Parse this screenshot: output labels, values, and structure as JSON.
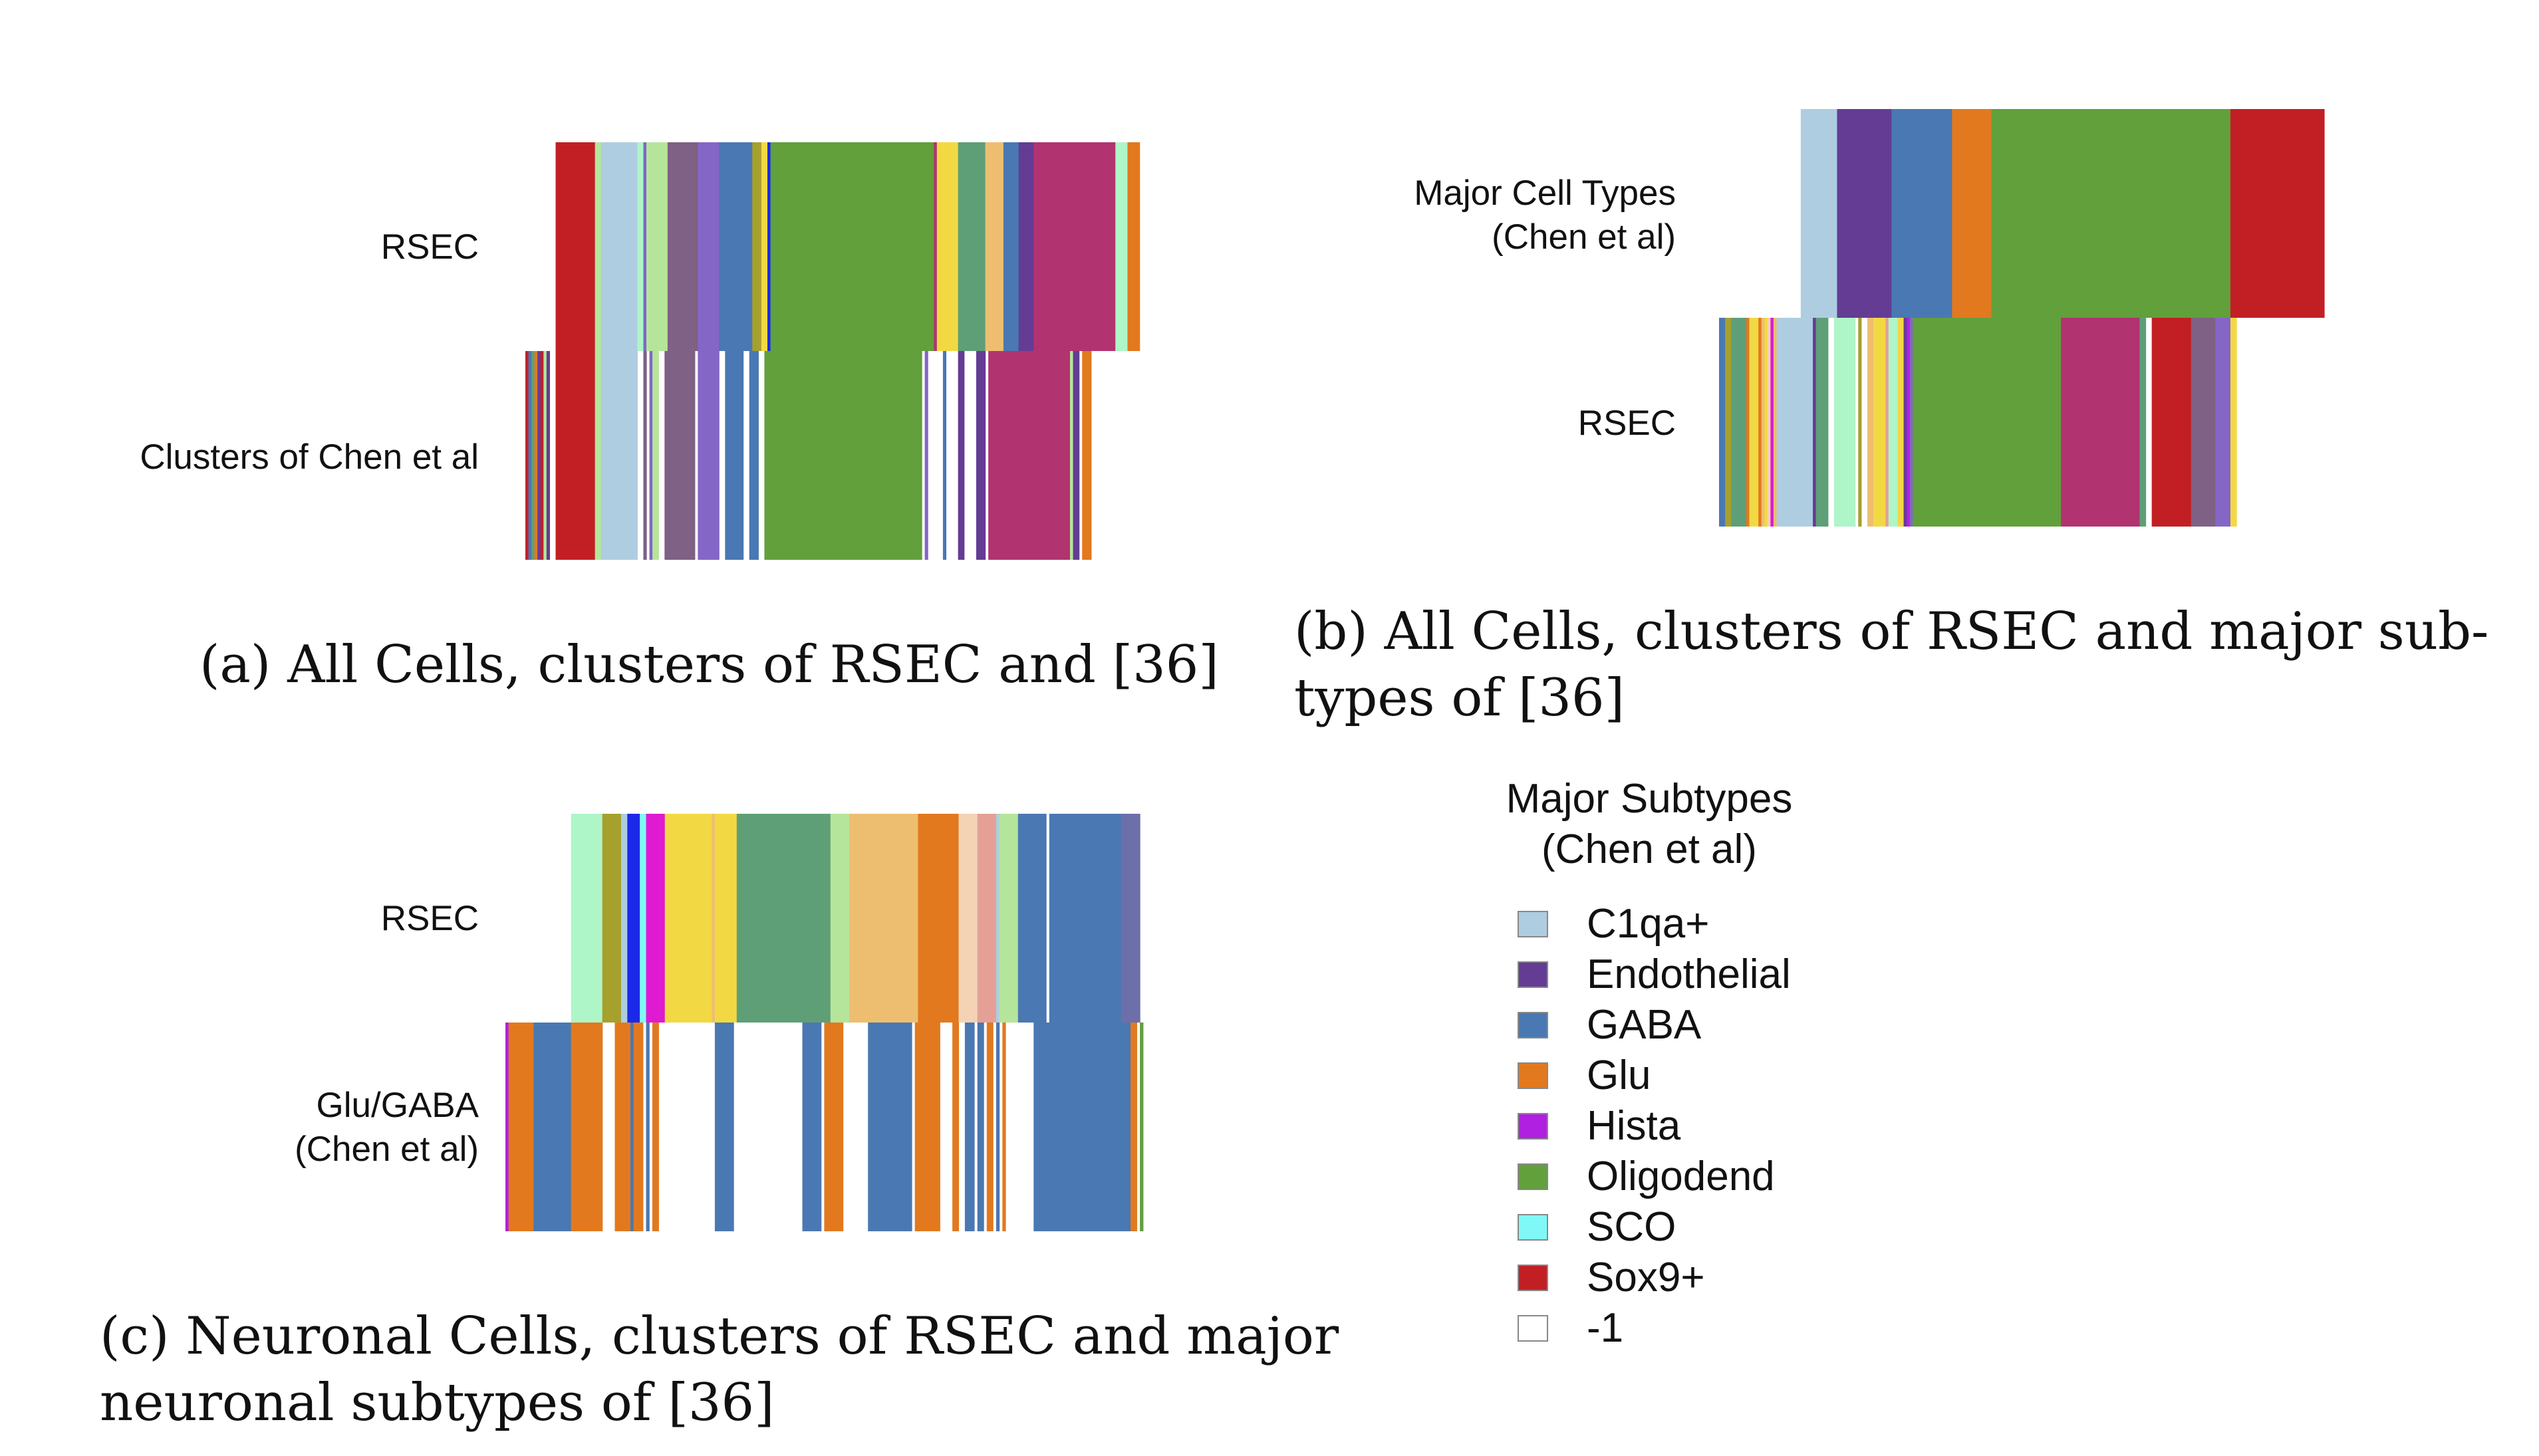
{
  "palette": {
    "C1qa+": "#aecde1",
    "Endothelial": "#643c94",
    "GABA": "#4a78b2",
    "Glu": "#e2791f",
    "Hista": "#b020e0",
    "Oligodend": "#61a03b",
    "SCO": "#80f8f8",
    "Sox9+": "#c21f25",
    "-1": "#ffffff",
    "magenta": "#b13370",
    "purple": "#7e6184",
    "lilac": "#8466c6",
    "mint": "#aef5c8",
    "yellow": "#f2d943",
    "teal": "#5f9f77",
    "tan": "#eebe70",
    "salmon": "#e5a096",
    "peach": "#f4d3b5",
    "olive": "#a6a02d",
    "lime": "#b5e59a",
    "blue": "#1b29e8",
    "pink": "#e01ad0",
    "slate": "#6c6fa9"
  },
  "legend": {
    "title_line1": "Major Subtypes",
    "title_line2": "(Chen et al)",
    "items": [
      {
        "label": "C1qa+",
        "color": "#aecde1"
      },
      {
        "label": "Endothelial",
        "color": "#643c94"
      },
      {
        "label": "GABA",
        "color": "#4a78b2"
      },
      {
        "label": "Glu",
        "color": "#e2791f"
      },
      {
        "label": "Hista",
        "color": "#b020e0"
      },
      {
        "label": "Oligodend",
        "color": "#61a03b"
      },
      {
        "label": "SCO",
        "color": "#80f8f8"
      },
      {
        "label": "Sox9+",
        "color": "#c21f25"
      },
      {
        "label": "-1",
        "color": "#ffffff"
      }
    ]
  },
  "chart_data": [
    {
      "type": "heatmap",
      "caption": "(a) All Cells, clusters of RSEC and [36]",
      "rows": [
        {
          "label": "RSEC",
          "cells_from": 0.05,
          "segments": [
            [
              "white",
              0.05
            ],
            [
              "Sox9+",
              0.065
            ],
            [
              "lime",
              0.01
            ],
            [
              "C1qa+",
              0.06
            ],
            [
              "mint",
              0.01
            ],
            [
              "lilac",
              0.005
            ],
            [
              "lime",
              0.035
            ],
            [
              "purple",
              0.05
            ],
            [
              "lilac",
              0.035
            ],
            [
              "GABA",
              0.055
            ],
            [
              "olive",
              0.015
            ],
            [
              "yellow",
              0.01
            ],
            [
              "blue",
              0.005
            ],
            [
              "Oligodend",
              0.27
            ],
            [
              "magenta",
              0.005
            ],
            [
              "yellow",
              0.035
            ],
            [
              "teal",
              0.045
            ],
            [
              "tan",
              0.03
            ],
            [
              "GABA",
              0.025
            ],
            [
              "Endothelial",
              0.025
            ],
            [
              "magenta",
              0.135
            ],
            [
              "mint",
              0.02
            ],
            [
              "Glu",
              0.02
            ]
          ]
        },
        {
          "label": "Clusters of Chen et al",
          "cells_from": 0,
          "segments": [
            [
              "Sox9+",
              0.005
            ],
            [
              "GABA",
              0.005
            ],
            [
              "teal",
              0.005
            ],
            [
              "Glu",
              0.005
            ],
            [
              "Endothelial",
              0.005
            ],
            [
              "Sox9+",
              0.005
            ],
            [
              "lime",
              0.005
            ],
            [
              "Endothelial",
              0.005
            ],
            [
              "white",
              0.01
            ],
            [
              "Sox9+",
              0.065
            ],
            [
              "lime",
              0.01
            ],
            [
              "C1qa+",
              0.06
            ],
            [
              "white",
              0.01
            ],
            [
              "purple",
              0.005
            ],
            [
              "white",
              0.005
            ],
            [
              "lilac",
              0.005
            ],
            [
              "lime",
              0.01
            ],
            [
              "white",
              0.01
            ],
            [
              "purple",
              0.05
            ],
            [
              "white",
              0.005
            ],
            [
              "lilac",
              0.035
            ],
            [
              "white",
              0.01
            ],
            [
              "GABA",
              0.03
            ],
            [
              "white",
              0.01
            ],
            [
              "GABA",
              0.015
            ],
            [
              "white",
              0.01
            ],
            [
              "Oligodend",
              0.26
            ],
            [
              "white",
              0.005
            ],
            [
              "lilac",
              0.005
            ],
            [
              "white",
              0.025
            ],
            [
              "GABA",
              0.005
            ],
            [
              "white",
              0.02
            ],
            [
              "Endothelial",
              0.01
            ],
            [
              "white",
              0.02
            ],
            [
              "Endothelial",
              0.015
            ],
            [
              "white",
              0.005
            ],
            [
              "magenta",
              0.135
            ],
            [
              "lime",
              0.005
            ],
            [
              "Endothelial",
              0.01
            ],
            [
              "white",
              0.005
            ],
            [
              "Glu",
              0.015
            ]
          ]
        }
      ]
    },
    {
      "type": "heatmap",
      "caption_line1": "(b) All Cells, clusters of RSEC and major sub-",
      "caption_line2": "types of [36]",
      "rows": [
        {
          "label_line1": "Major Cell Types",
          "label_line2": "(Chen et al)",
          "cells_from": 0.135,
          "segments": [
            [
              "white",
              0.135
            ],
            [
              "C1qa+",
              0.06
            ],
            [
              "Endothelial",
              0.09
            ],
            [
              "GABA",
              0.1
            ],
            [
              "Glu",
              0.065
            ],
            [
              "Oligodend",
              0.395
            ],
            [
              "Sox9+",
              0.155
            ]
          ]
        },
        {
          "label_line1": "RSEC",
          "label_line2": "",
          "cells_from": 0,
          "segments": [
            [
              "GABA",
              0.01
            ],
            [
              "olive",
              0.01
            ],
            [
              "teal",
              0.025
            ],
            [
              "Glu",
              0.005
            ],
            [
              "yellow",
              0.015
            ],
            [
              "Glu",
              0.005
            ],
            [
              "tan",
              0.005
            ],
            [
              "yellow",
              0.005
            ],
            [
              "peach",
              0.005
            ],
            [
              "pink",
              0.005
            ],
            [
              "tan",
              0.005
            ],
            [
              "C1qa+",
              0.06
            ],
            [
              "Endothelial",
              0.005
            ],
            [
              "teal",
              0.02
            ],
            [
              "white",
              0.01
            ],
            [
              "mint",
              0.035
            ],
            [
              "white",
              0.005
            ],
            [
              "olive",
              0.005
            ],
            [
              "white",
              0.01
            ],
            [
              "tan",
              0.01
            ],
            [
              "yellow",
              0.02
            ],
            [
              "salmon",
              0.005
            ],
            [
              "mint",
              0.015
            ],
            [
              "yellow",
              0.01
            ],
            [
              "Endothelial",
              0.005
            ],
            [
              "Hista",
              0.005
            ],
            [
              "lilac",
              0.005
            ],
            [
              "Oligodend",
              0.245
            ],
            [
              "magenta",
              0.13
            ],
            [
              "teal",
              0.01
            ],
            [
              "white",
              0.01
            ],
            [
              "Sox9+",
              0.065
            ],
            [
              "purple",
              0.04
            ],
            [
              "lilac",
              0.025
            ],
            [
              "yellow",
              0.01
            ]
          ]
        }
      ]
    },
    {
      "type": "heatmap",
      "caption_line1": "(c) Neuronal Cells, clusters of RSEC and major",
      "caption_line2": "neuronal subtypes of [36]",
      "rows": [
        {
          "label_line1": "RSEC",
          "label_line2": "",
          "cells_from": 0.105,
          "segments": [
            [
              "white",
              0.105
            ],
            [
              "mint",
              0.05
            ],
            [
              "olive",
              0.03
            ],
            [
              "C1qa+",
              0.01
            ],
            [
              "blue",
              0.02
            ],
            [
              "SCO",
              0.01
            ],
            [
              "pink",
              0.03
            ],
            [
              "yellow",
              0.075
            ],
            [
              "tan",
              0.005
            ],
            [
              "yellow",
              0.035
            ],
            [
              "teal",
              0.15
            ],
            [
              "lime",
              0.03
            ],
            [
              "tan",
              0.11
            ],
            [
              "Glu",
              0.065
            ],
            [
              "peach",
              0.03
            ],
            [
              "salmon",
              0.03
            ],
            [
              "C1qa+",
              0.005
            ],
            [
              "lime",
              0.03
            ],
            [
              "GABA",
              0.045
            ],
            [
              "white",
              0.005
            ],
            [
              "GABA",
              0.115
            ],
            [
              "slate",
              0.03
            ]
          ]
        },
        {
          "label_line1": "Glu/GABA",
          "label_line2": "(Chen et al)",
          "cells_from": 0,
          "segments": [
            [
              "Hista",
              0.005
            ],
            [
              "Glu",
              0.04
            ],
            [
              "GABA",
              0.06
            ],
            [
              "Glu",
              0.05
            ],
            [
              "white",
              0.02
            ],
            [
              "Glu",
              0.025
            ],
            [
              "GABA",
              0.005
            ],
            [
              "Glu",
              0.015
            ],
            [
              "white",
              0.005
            ],
            [
              "GABA",
              0.005
            ],
            [
              "white",
              0.005
            ],
            [
              "Glu",
              0.01
            ],
            [
              "white",
              0.09
            ],
            [
              "GABA",
              0.03
            ],
            [
              "white",
              0.11
            ],
            [
              "GABA",
              0.03
            ],
            [
              "white",
              0.005
            ],
            [
              "Glu",
              0.03
            ],
            [
              "white",
              0.04
            ],
            [
              "GABA",
              0.07
            ],
            [
              "white",
              0.005
            ],
            [
              "Glu",
              0.04
            ],
            [
              "white",
              0.02
            ],
            [
              "Glu",
              0.01
            ],
            [
              "white",
              0.01
            ],
            [
              "GABA",
              0.015
            ],
            [
              "white",
              0.005
            ],
            [
              "GABA",
              0.01
            ],
            [
              "white",
              0.005
            ],
            [
              "Glu",
              0.01
            ],
            [
              "white",
              0.005
            ],
            [
              "GABA",
              0.005
            ],
            [
              "white",
              0.005
            ],
            [
              "Glu",
              0.005
            ],
            [
              "white",
              0.045
            ],
            [
              "GABA",
              0.155
            ],
            [
              "Glu",
              0.01
            ],
            [
              "white",
              0.005
            ],
            [
              "Oligodend",
              0.005
            ]
          ]
        }
      ]
    }
  ]
}
